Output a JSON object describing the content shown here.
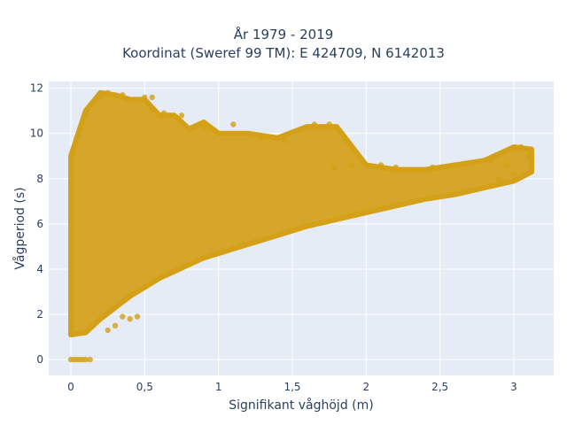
{
  "chart_data": {
    "type": "scatter",
    "title": "År 1979 - 2019",
    "subtitle": "Koordinat (Sweref 99 TM): E 424709, N 6142013",
    "xlabel": "Signifikant våghöjd (m)",
    "ylabel": "Vågperiod (s)",
    "xlim": [
      -0.15,
      3.27
    ],
    "ylim": [
      -0.7,
      12.3
    ],
    "x_ticks": [
      0,
      0.5,
      1,
      1.5,
      2,
      2.5,
      3
    ],
    "x_tick_labels": [
      "0",
      "0,5",
      "1",
      "1,5",
      "2",
      "2,5",
      "3"
    ],
    "y_ticks": [
      0,
      2,
      4,
      6,
      8,
      10,
      12
    ],
    "y_tick_labels": [
      "0",
      "2",
      "4",
      "6",
      "8",
      "10",
      "12"
    ],
    "grid": true,
    "legend": "none",
    "series": [
      {
        "color": "#D4A017",
        "envelope": [
          {
            "hs": 0.0,
            "tp_min": 1.1,
            "tp_max": 9.0
          },
          {
            "hs": 0.1,
            "tp_min": 1.2,
            "tp_max": 11.0
          },
          {
            "hs": 0.2,
            "tp_min": 1.8,
            "tp_max": 11.8
          },
          {
            "hs": 0.3,
            "tp_min": 2.3,
            "tp_max": 11.7
          },
          {
            "hs": 0.4,
            "tp_min": 2.8,
            "tp_max": 11.5
          },
          {
            "hs": 0.5,
            "tp_min": 3.2,
            "tp_max": 11.5
          },
          {
            "hs": 0.6,
            "tp_min": 3.6,
            "tp_max": 10.8
          },
          {
            "hs": 0.7,
            "tp_min": 3.9,
            "tp_max": 10.8
          },
          {
            "hs": 0.8,
            "tp_min": 4.2,
            "tp_max": 10.2
          },
          {
            "hs": 0.9,
            "tp_min": 4.5,
            "tp_max": 10.5
          },
          {
            "hs": 1.0,
            "tp_min": 4.7,
            "tp_max": 10.0
          },
          {
            "hs": 1.2,
            "tp_min": 5.1,
            "tp_max": 10.0
          },
          {
            "hs": 1.4,
            "tp_min": 5.5,
            "tp_max": 9.8
          },
          {
            "hs": 1.6,
            "tp_min": 5.9,
            "tp_max": 10.3
          },
          {
            "hs": 1.8,
            "tp_min": 6.2,
            "tp_max": 10.3
          },
          {
            "hs": 2.0,
            "tp_min": 6.5,
            "tp_max": 8.6
          },
          {
            "hs": 2.2,
            "tp_min": 6.8,
            "tp_max": 8.4
          },
          {
            "hs": 2.4,
            "tp_min": 7.1,
            "tp_max": 8.4
          },
          {
            "hs": 2.6,
            "tp_min": 7.3,
            "tp_max": 8.6
          },
          {
            "hs": 2.8,
            "tp_min": 7.6,
            "tp_max": 8.8
          },
          {
            "hs": 3.0,
            "tp_min": 7.9,
            "tp_max": 9.4
          },
          {
            "hs": 3.12,
            "tp_min": 8.3,
            "tp_max": 9.3
          }
        ],
        "points": [
          {
            "x": 0.0,
            "y": 0.0
          },
          {
            "x": 0.02,
            "y": 0.0
          },
          {
            "x": 0.04,
            "y": 0.0
          },
          {
            "x": 0.06,
            "y": 0.0
          },
          {
            "x": 0.08,
            "y": 0.0
          },
          {
            "x": 0.1,
            "y": 0.0
          },
          {
            "x": 0.13,
            "y": 0.0
          },
          {
            "x": 0.25,
            "y": 11.8
          },
          {
            "x": 0.2,
            "y": 11.6
          },
          {
            "x": 0.35,
            "y": 11.7
          },
          {
            "x": 0.5,
            "y": 11.6
          },
          {
            "x": 0.55,
            "y": 11.6
          },
          {
            "x": 0.63,
            "y": 10.9
          },
          {
            "x": 0.75,
            "y": 10.8
          },
          {
            "x": 0.9,
            "y": 10.3
          },
          {
            "x": 1.1,
            "y": 10.4
          },
          {
            "x": 1.3,
            "y": 9.8
          },
          {
            "x": 1.45,
            "y": 9.7
          },
          {
            "x": 1.65,
            "y": 10.4
          },
          {
            "x": 1.75,
            "y": 10.4
          },
          {
            "x": 1.78,
            "y": 8.5
          },
          {
            "x": 1.9,
            "y": 8.6
          },
          {
            "x": 2.1,
            "y": 8.6
          },
          {
            "x": 2.2,
            "y": 8.5
          },
          {
            "x": 2.45,
            "y": 8.5
          },
          {
            "x": 2.6,
            "y": 8.6
          },
          {
            "x": 2.7,
            "y": 8.7
          },
          {
            "x": 2.85,
            "y": 8.8
          },
          {
            "x": 2.95,
            "y": 8.6
          },
          {
            "x": 3.05,
            "y": 9.4
          },
          {
            "x": 3.1,
            "y": 9.0
          },
          {
            "x": 3.12,
            "y": 8.8
          },
          {
            "x": 3.0,
            "y": 8.2
          },
          {
            "x": 2.9,
            "y": 8.0
          },
          {
            "x": 0.4,
            "y": 1.8
          },
          {
            "x": 0.45,
            "y": 1.9
          },
          {
            "x": 0.35,
            "y": 1.9
          },
          {
            "x": 0.25,
            "y": 1.3
          },
          {
            "x": 0.3,
            "y": 1.5
          }
        ]
      }
    ]
  }
}
